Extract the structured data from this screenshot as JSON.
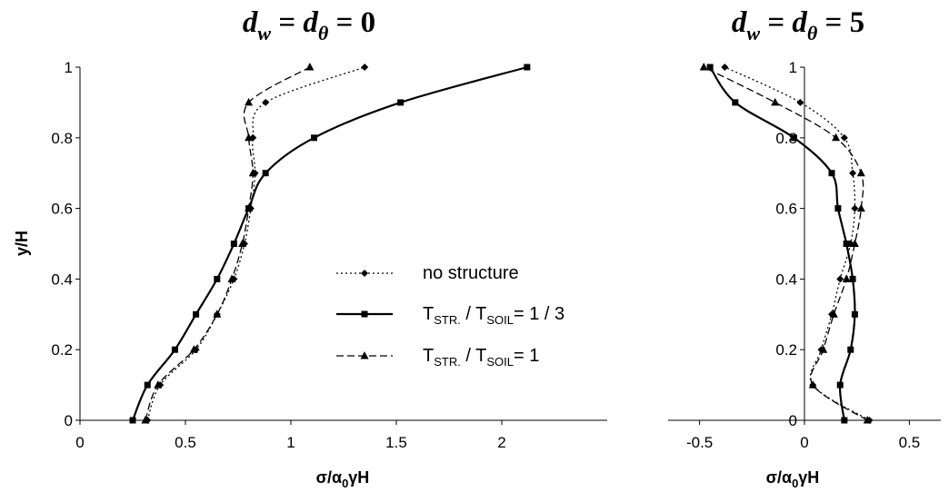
{
  "chart_data": [
    {
      "type": "line",
      "title": {
        "base": "d",
        "sub1": "w",
        "mid": " = ",
        "sub2": "θ",
        "tail": " = 0"
      },
      "xlabel": {
        "pre": "σ/α",
        "sub": "0",
        "post": "γH"
      },
      "ylabel": "y/H",
      "xlim": [
        0,
        2.5
      ],
      "ylim": [
        0,
        1
      ],
      "xticks": [
        "0",
        "0.5",
        "1",
        "1.5",
        "2"
      ],
      "yticks": [
        "0",
        "0.2",
        "0.4",
        "0.6",
        "0.8",
        "1"
      ],
      "grid": false,
      "series": [
        {
          "name": "no structure",
          "marker": "diamond",
          "dash": "2,3",
          "stroke_width": 1.3,
          "x": [
            0.32,
            0.38,
            0.55,
            0.65,
            0.73,
            0.78,
            0.81,
            0.83,
            0.82,
            0.88,
            1.35
          ],
          "y": [
            0,
            0.1,
            0.2,
            0.3,
            0.4,
            0.5,
            0.6,
            0.7,
            0.8,
            0.9,
            1.0
          ]
        },
        {
          "name": "T_STR. / T_SOIL = 1 / 3",
          "marker": "square",
          "dash": "",
          "stroke_width": 2.2,
          "x": [
            0.25,
            0.32,
            0.45,
            0.55,
            0.65,
            0.73,
            0.8,
            0.88,
            1.11,
            1.52,
            2.12
          ],
          "y": [
            0,
            0.1,
            0.2,
            0.3,
            0.4,
            0.5,
            0.6,
            0.7,
            0.8,
            0.9,
            1.0
          ]
        },
        {
          "name": "T_STR. / T_SOIL = 1",
          "marker": "triangle",
          "dash": "8,4",
          "stroke_width": 1.3,
          "x": [
            0.31,
            0.37,
            0.54,
            0.65,
            0.72,
            0.77,
            0.8,
            0.82,
            0.8,
            0.8,
            1.09
          ],
          "y": [
            0,
            0.1,
            0.2,
            0.3,
            0.4,
            0.5,
            0.6,
            0.7,
            0.8,
            0.9,
            1.0
          ]
        }
      ]
    },
    {
      "type": "line",
      "title": {
        "base": "d",
        "sub1": "w",
        "mid": " = ",
        "sub2": "θ",
        "tail": " = 5"
      },
      "xlabel": {
        "pre": "σ/α",
        "sub": "0",
        "post": "γH"
      },
      "ylabel": "",
      "xlim": [
        -0.65,
        0.65
      ],
      "ylim": [
        0,
        1
      ],
      "xticks": [
        "-0.5",
        "0",
        "0.5"
      ],
      "yticks": [
        "0",
        "0.2",
        "0.4",
        "0.6",
        "0.8",
        "1"
      ],
      "grid": false,
      "series": [
        {
          "name": "no structure",
          "marker": "diamond",
          "dash": "2,3",
          "stroke_width": 1.3,
          "x": [
            0.31,
            0.04,
            0.08,
            0.13,
            0.17,
            0.22,
            0.24,
            0.23,
            0.19,
            -0.02,
            -0.38
          ],
          "y": [
            0,
            0.1,
            0.2,
            0.3,
            0.4,
            0.5,
            0.6,
            0.7,
            0.8,
            0.9,
            1.0
          ]
        },
        {
          "name": "T_STR. / T_SOIL = 1 / 3",
          "marker": "square",
          "dash": "",
          "stroke_width": 2.2,
          "x": [
            0.19,
            0.17,
            0.22,
            0.24,
            0.23,
            0.2,
            0.16,
            0.13,
            -0.05,
            -0.33,
            -0.45
          ],
          "y": [
            0,
            0.1,
            0.2,
            0.3,
            0.4,
            0.5,
            0.6,
            0.7,
            0.8,
            0.9,
            1.0
          ]
        },
        {
          "name": "T_STR. / T_SOIL = 1",
          "marker": "triangle",
          "dash": "8,4",
          "stroke_width": 1.3,
          "x": [
            0.3,
            0.04,
            0.09,
            0.14,
            0.2,
            0.24,
            0.27,
            0.27,
            0.15,
            -0.14,
            -0.48
          ],
          "y": [
            0,
            0.1,
            0.2,
            0.3,
            0.4,
            0.5,
            0.6,
            0.7,
            0.8,
            0.9,
            1.0
          ]
        }
      ]
    }
  ],
  "legend": {
    "location": "center-left chart",
    "items": [
      {
        "name": "no structure",
        "marker": "diamond",
        "dash": "2,3",
        "stroke_width": 1.3,
        "parts": {
          "a": "no structure",
          "s1": "",
          "b": "",
          "s2": "",
          "c": ""
        }
      },
      {
        "name": "T_STR. / T_SOIL = 1 / 3",
        "marker": "square",
        "dash": "",
        "stroke_width": 2.2,
        "parts": {
          "a": "T",
          "s1": "STR.",
          "b": " / T",
          "s2": "SOIL",
          "c": "= 1 / 3"
        }
      },
      {
        "name": "T_STR. / T_SOIL = 1",
        "marker": "triangle",
        "dash": "8,4",
        "stroke_width": 1.3,
        "parts": {
          "a": "T",
          "s1": "STR.",
          "b": " / T",
          "s2": "SOIL",
          "c": "= 1"
        }
      }
    ]
  }
}
